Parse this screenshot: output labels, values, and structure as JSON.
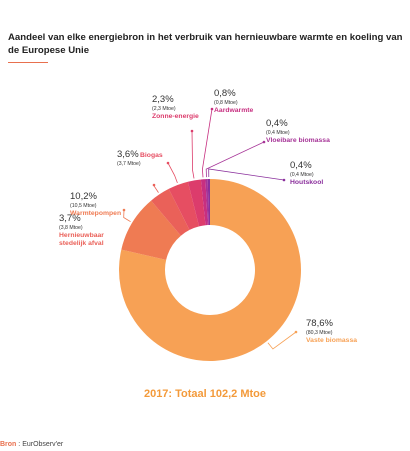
{
  "title": "Aandeel van elke energiebron in het verbruik van hernieuwbare warmte en koeling van de Europese Unie",
  "total": "2017: Totaal 102,2 Mtoe",
  "source": {
    "label": "Bron",
    "separator": " : ",
    "value": "EurObserv'er"
  },
  "chart_data": {
    "type": "pie",
    "subtype": "donut",
    "title": "Aandeel van elke energiebron in het verbruik van hernieuwbare warmte en koeling van de Europese Unie",
    "total_label": "2017: Totaal 102,2 Mtoe",
    "unit": "Mtoe",
    "slices": [
      {
        "name": "Vaste biomassa",
        "percent": 78.6,
        "percent_label": "78,6%",
        "value": 80.3,
        "value_label": "(80,3 Mtoe)",
        "color": "#f7a155"
      },
      {
        "name": "Warmtepompen",
        "percent": 10.2,
        "percent_label": "10,2%",
        "value": 10.5,
        "value_label": "(10,5 Mtoe)",
        "color": "#ef7b53"
      },
      {
        "name": "Hernieuwbaar stedelijk afval",
        "percent": 3.7,
        "percent_label": "3,7%",
        "value": 3.8,
        "value_label": "(3,8 Mtoe)",
        "color": "#ea6159"
      },
      {
        "name": "Biogas",
        "percent": 3.6,
        "percent_label": "3,6%",
        "value": 3.7,
        "value_label": "(3,7 Mtoe)",
        "color": "#e64e62"
      },
      {
        "name": "Zonne-energie",
        "percent": 2.3,
        "percent_label": "2,3%",
        "value": 2.3,
        "value_label": "(2,3 Mtoe)",
        "color": "#dc3c6c"
      },
      {
        "name": "Aardwarmte",
        "percent": 0.8,
        "percent_label": "0,8%",
        "value": 0.8,
        "value_label": "(0,8 Mtoe)",
        "color": "#c72f80"
      },
      {
        "name": "Vloeibare biomassa",
        "percent": 0.4,
        "percent_label": "0,4%",
        "value": 0.4,
        "value_label": "(0,4 Mtoe)",
        "color": "#a63497"
      },
      {
        "name": "Houtskool",
        "percent": 0.4,
        "percent_label": "0,4%",
        "value": 0.4,
        "value_label": "(0,4 Mtoe)",
        "color": "#8a2f9c"
      }
    ],
    "colors": {
      "accent": "#e8704e",
      "total": "#f39a3a",
      "text": "#222222"
    }
  }
}
